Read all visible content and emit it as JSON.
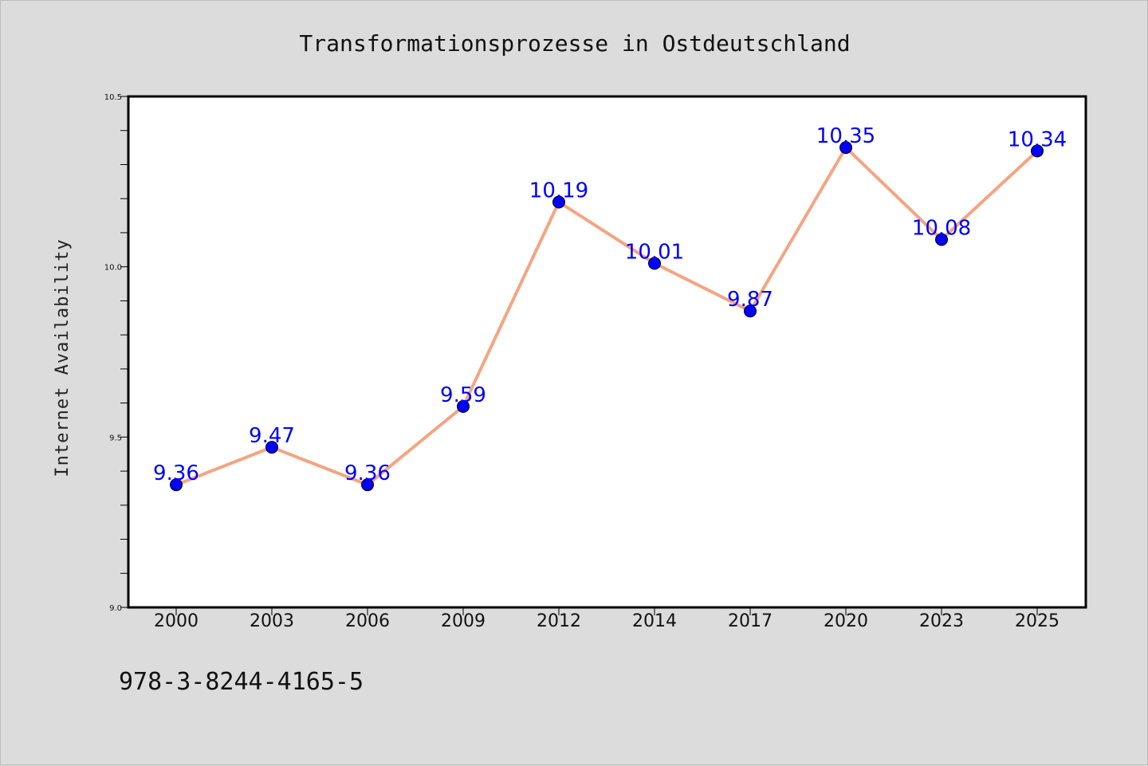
{
  "chart_data": {
    "type": "line",
    "title": "Transformationsprozesse in Ostdeutschland",
    "xlabel": "",
    "ylabel": "Internet Availability",
    "categories": [
      "2000",
      "2003",
      "2006",
      "2009",
      "2012",
      "2014",
      "2017",
      "2020",
      "2023",
      "2025"
    ],
    "series": [
      {
        "values": [
          9.36,
          9.47,
          9.36,
          9.59,
          10.19,
          10.01,
          9.87,
          10.35,
          10.08,
          10.34
        ],
        "data_labels": [
          "9.36",
          "9.47",
          "9.36",
          "9.59",
          "10.19",
          "10.01",
          "9.87",
          "10.35",
          "10.08",
          "10.34"
        ],
        "line_color": "#f4a582",
        "marker_color": "#0000ff"
      }
    ],
    "ylim": [
      9.0,
      10.5
    ],
    "yticks": [
      9.0,
      9.5,
      10.0,
      10.5
    ],
    "ytick_labels": [
      "9.0",
      "9.5",
      "10.0",
      "10.5"
    ],
    "yminor_step": 0.1,
    "grid": false,
    "legend": "none"
  },
  "footer": {
    "isbn": "978-3-8244-4165-5"
  },
  "colors": {
    "figure_background": "#dcdcdc",
    "plot_background": "#ffffff",
    "line": "#f4a582",
    "marker": "#0000ff",
    "data_label": "#0000ff"
  }
}
